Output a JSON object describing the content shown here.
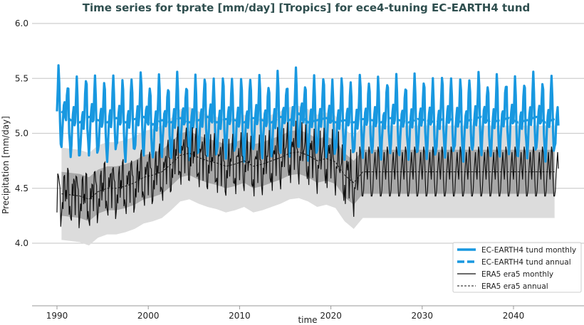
{
  "chart_data": {
    "type": "line",
    "title": "Time series for tprate [mm/day] [Tropics] for ece4-tuning EC-EARTH4 tund",
    "xlabel": "time",
    "ylabel": "Precipitation [mm/day]",
    "xlim": [
      1987.3,
      2046.0
    ],
    "ylim": [
      3.6,
      6.05
    ],
    "xticks": [
      "1990",
      "2000",
      "2010",
      "2020",
      "2030",
      "2040"
    ],
    "yticks": [
      "4.0",
      "4.5",
      "5.0",
      "5.5",
      "6.0"
    ],
    "grid": "horizontal",
    "legend_position": "bottom-right",
    "colors": {
      "model": "#1898e0",
      "era5": "#111111",
      "band_dark": "#a8a8a8",
      "band_light": "#dcdcdc",
      "title": "#2f4f4f"
    },
    "legend": [
      "EC-EARTH4 tund monthly",
      "EC-EARTH4 tund annual",
      "ERA5 era5 monthly",
      "ERA5 era5 annual"
    ],
    "model": {
      "start_year": 1990,
      "end_year": 2044.9,
      "monthly_climatology": [
        5.15,
        5.35,
        5.5,
        5.4,
        5.05,
        4.9,
        4.85,
        4.95,
        5.1,
        5.2,
        5.25,
        5.1
      ],
      "annual_mean": [
        5.2,
        5.12,
        5.1,
        5.15,
        5.12,
        5.1,
        5.14,
        5.1,
        5.13,
        5.15,
        5.08,
        5.12,
        5.1,
        5.14,
        5.1,
        5.12,
        5.15,
        5.1,
        5.13,
        5.12,
        5.1,
        5.14,
        5.12,
        5.1,
        5.15,
        5.12,
        5.18,
        5.1,
        5.12,
        5.14,
        5.1,
        5.12,
        5.1,
        5.13,
        5.12,
        5.1,
        5.14,
        5.12,
        5.1,
        5.13,
        5.12,
        5.1,
        5.14,
        5.12,
        5.1,
        5.13,
        5.15,
        5.1,
        5.12,
        5.14,
        5.1,
        5.12,
        5.15,
        5.1,
        5.13
      ]
    },
    "era5": {
      "start_year": 1990,
      "monthly_climatology": [
        4.55,
        4.7,
        4.85,
        4.8,
        4.55,
        4.4,
        4.4,
        4.45,
        4.6,
        4.7,
        4.8,
        4.65
      ],
      "annual_mean": [
        4.45,
        4.44,
        4.43,
        4.4,
        4.47,
        4.5,
        4.5,
        4.52,
        4.55,
        4.6,
        4.62,
        4.65,
        4.72,
        4.8,
        4.82,
        4.78,
        4.75,
        4.73,
        4.7,
        4.72,
        4.75,
        4.7,
        4.72,
        4.75,
        4.78,
        4.82,
        4.83,
        4.8,
        4.75,
        4.77,
        4.74,
        4.62,
        4.55
      ],
      "climatology_annual_after_2023": 4.65,
      "std": 0.2
    }
  }
}
